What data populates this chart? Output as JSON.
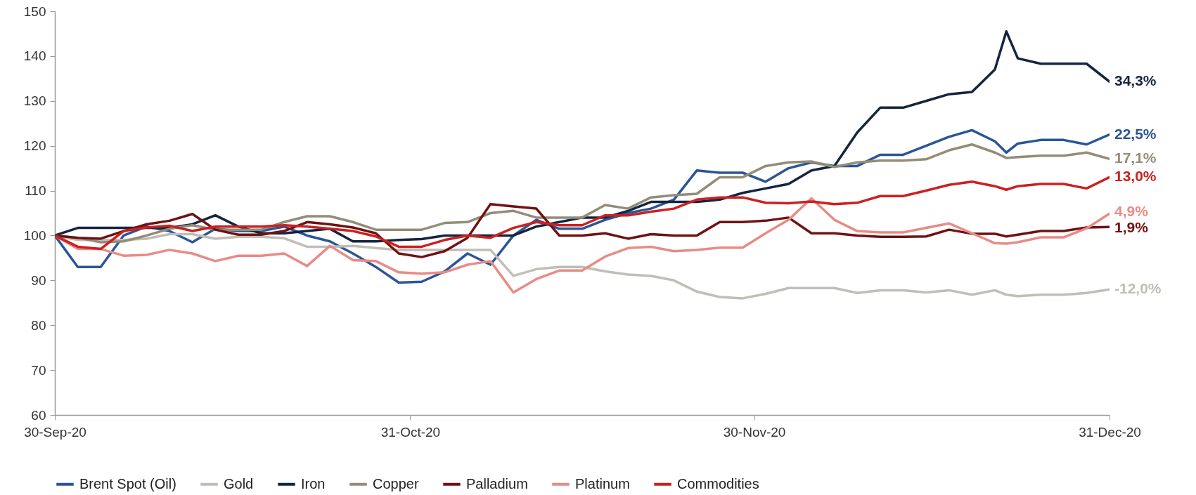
{
  "chart_data": {
    "type": "line",
    "x": [
      "2020-09-30",
      "2020-10-02",
      "2020-10-04",
      "2020-10-06",
      "2020-10-08",
      "2020-10-10",
      "2020-10-12",
      "2020-10-14",
      "2020-10-16",
      "2020-10-18",
      "2020-10-20",
      "2020-10-22",
      "2020-10-24",
      "2020-10-26",
      "2020-10-28",
      "2020-10-30",
      "2020-11-01",
      "2020-11-03",
      "2020-11-05",
      "2020-11-07",
      "2020-11-09",
      "2020-11-11",
      "2020-11-13",
      "2020-11-15",
      "2020-11-17",
      "2020-11-19",
      "2020-11-21",
      "2020-11-23",
      "2020-11-25",
      "2020-11-27",
      "2020-11-29",
      "2020-12-01",
      "2020-12-03",
      "2020-12-05",
      "2020-12-07",
      "2020-12-09",
      "2020-12-11",
      "2020-12-13",
      "2020-12-15",
      "2020-12-17",
      "2020-12-19",
      "2020-12-21",
      "2020-12-22",
      "2020-12-23",
      "2020-12-25",
      "2020-12-27",
      "2020-12-29",
      "2020-12-31"
    ],
    "series": [
      {
        "name": "Brent Spot (Oil)",
        "color": "#2a5597",
        "values": [
          100,
          93,
          93,
          100,
          102,
          101,
          98.5,
          101.5,
          101,
          101,
          102,
          100,
          98.7,
          96,
          93,
          89.5,
          89.7,
          92,
          96,
          93.5,
          100,
          103.5,
          101.5,
          101.5,
          103.5,
          105,
          106,
          108,
          114.5,
          114,
          114,
          112,
          115,
          116.3,
          115.5,
          115.5,
          118,
          118,
          120,
          122,
          123.5,
          121,
          118.5,
          120.5,
          121.3,
          121.3,
          120.3,
          122.5
        ]
      },
      {
        "name": "Gold",
        "color": "#c0beb7",
        "values": [
          100,
          99,
          99,
          99,
          99.3,
          100.3,
          100.3,
          99.3,
          99.7,
          99.7,
          99.4,
          97.5,
          97.5,
          97.7,
          97.2,
          96.8,
          96.8,
          96.8,
          96.8,
          96.8,
          91,
          92.5,
          93,
          93,
          92,
          91.3,
          91,
          90,
          87.5,
          86.3,
          86,
          87,
          88.3,
          88.3,
          88.3,
          87.2,
          87.8,
          87.8,
          87.3,
          87.8,
          86.8,
          87.8,
          86.8,
          86.5,
          86.8,
          86.8,
          87.2,
          88
        ]
      },
      {
        "name": "Iron",
        "color": "#14253f",
        "values": [
          100,
          101.7,
          101.7,
          101.7,
          101.7,
          101.7,
          102.5,
          104.5,
          102,
          100.5,
          100.5,
          101,
          101.5,
          98.7,
          98.7,
          99,
          99.2,
          100,
          100,
          100,
          100,
          102,
          103,
          104,
          104,
          105.5,
          107.5,
          107.5,
          107.5,
          108,
          109.5,
          110.5,
          111.5,
          114.5,
          115.5,
          123,
          128.5,
          128.5,
          130,
          131.5,
          132,
          137,
          145.5,
          139.5,
          138.3,
          138.3,
          138.3,
          134.3
        ]
      },
      {
        "name": "Copper",
        "color": "#948c77",
        "values": [
          100,
          99.5,
          98.5,
          98.7,
          100,
          101.5,
          102.3,
          101.3,
          101.3,
          101.3,
          103,
          104.3,
          104.3,
          103,
          101.3,
          101.3,
          101.3,
          102.8,
          103,
          105,
          105.5,
          104,
          104,
          104,
          106.8,
          106,
          108.5,
          109,
          109.3,
          113,
          113,
          115.5,
          116.3,
          116.5,
          115.3,
          116.3,
          116.7,
          116.7,
          117,
          119,
          120.3,
          118.5,
          117.3,
          117.5,
          117.8,
          117.8,
          118.5,
          117.1
        ]
      },
      {
        "name": "Palladium",
        "color": "#6f1212",
        "values": [
          100,
          99.5,
          99.3,
          101,
          102.5,
          103.3,
          104.8,
          101.3,
          100.2,
          100.2,
          101,
          103,
          102.5,
          101.8,
          100.5,
          96,
          95.2,
          96.5,
          99.5,
          107,
          106.5,
          106,
          100,
          100,
          100.5,
          99.3,
          100.3,
          100,
          100,
          103,
          103,
          103.3,
          104,
          100.5,
          100.5,
          100,
          99.7,
          99.7,
          99.8,
          101.3,
          100.4,
          100.4,
          99.8,
          100.2,
          101,
          101,
          101.8,
          101.9
        ]
      },
      {
        "name": "Platinum",
        "color": "#e88b87",
        "values": [
          100,
          97,
          97,
          95.5,
          95.7,
          96.8,
          96,
          94.3,
          95.5,
          95.5,
          96,
          93.2,
          97.7,
          94.5,
          94.3,
          91.8,
          91.5,
          91.8,
          93.5,
          94.3,
          87.3,
          90.3,
          92.2,
          92.2,
          95.3,
          97.2,
          97.5,
          96.5,
          96.8,
          97.3,
          97.3,
          100.5,
          103.5,
          108.3,
          103.5,
          101,
          100.7,
          100.7,
          101.7,
          102.7,
          100.5,
          98.3,
          98.2,
          98.5,
          99.6,
          99.6,
          101.6,
          104.9
        ]
      },
      {
        "name": "Commodities",
        "color": "#cc2020",
        "values": [
          100,
          97.5,
          97,
          101,
          101.8,
          102.2,
          101,
          102,
          102,
          102,
          102.3,
          102,
          101.5,
          101,
          99.8,
          97.5,
          97.5,
          99,
          100,
          99.5,
          101.7,
          103,
          102.3,
          102.3,
          104.5,
          104.5,
          105.3,
          106,
          108,
          108.5,
          108.5,
          107.3,
          107.2,
          107.6,
          107,
          107.3,
          108.8,
          108.8,
          110,
          111.3,
          112,
          111,
          110.2,
          111,
          111.5,
          111.5,
          110.5,
          113
        ]
      }
    ],
    "annotations": [
      {
        "text": "22,5%",
        "x": "2020-12-31",
        "y": 122.5
      },
      {
        "text": "-12,0%",
        "x": "2020-12-31",
        "y": 88
      },
      {
        "text": "34,3%",
        "x": "2020-12-31",
        "y": 134.3
      },
      {
        "text": "17,1%",
        "x": "2020-12-31",
        "y": 117.1
      },
      {
        "text": "1,9%",
        "x": "2020-12-31",
        "y": 101.9
      },
      {
        "text": "4,9%",
        "x": "2020-12-31",
        "y": 104.9
      },
      {
        "text": "13,0%",
        "x": "2020-12-31",
        "y": 113
      }
    ],
    "xlim": [
      "2020-09-30",
      "2020-12-31"
    ],
    "xticks": [
      {
        "value": "2020-09-30",
        "label": "30-Sep-20"
      },
      {
        "value": "2020-10-31",
        "label": "31-Oct-20"
      },
      {
        "value": "2020-11-30",
        "label": "30-Nov-20"
      },
      {
        "value": "2020-12-31",
        "label": "31-Dec-20"
      }
    ],
    "ylim": [
      60,
      150
    ],
    "yticks": [
      60,
      70,
      80,
      90,
      100,
      110,
      120,
      130,
      140,
      150
    ],
    "grid": false,
    "legend": "bottom",
    "marker": "none",
    "line_style": "solid"
  }
}
